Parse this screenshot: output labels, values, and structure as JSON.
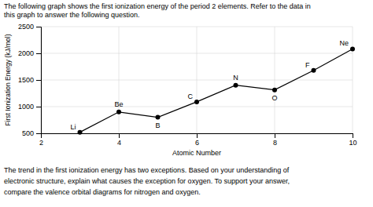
{
  "chart_data": {
    "type": "line",
    "text_above": [
      "The following graph shows the first ionization energy of the period 2 elements. Refer to the data in",
      "this graph to answer the following question."
    ],
    "text_below": [
      "The trend in the first ionization energy has two exceptions. Based on your understanding of",
      "electronic structure, explain what causes the exception for oxygen. To support your answer,",
      "compare the valence orbital diagrams for nitrogen and oxygen."
    ],
    "x": [
      3,
      4,
      5,
      6,
      7,
      8,
      9,
      10
    ],
    "values": [
      520,
      900,
      800,
      1090,
      1402,
      1314,
      1681,
      2081
    ],
    "point_labels": [
      "Li",
      "Be",
      "B",
      "C",
      "N",
      "O",
      "F",
      "Ne"
    ],
    "xlabel": "Atomic Number",
    "ylabel": "First Ionization Energy (kJ/mol)",
    "xlim": [
      2,
      10
    ],
    "ylim": [
      500,
      2500
    ],
    "xticks": [
      2,
      4,
      6,
      8,
      10
    ],
    "yticks": [
      500,
      1000,
      1500,
      2000,
      2500
    ],
    "color": "#000000",
    "marker": "circle",
    "grid": true
  }
}
